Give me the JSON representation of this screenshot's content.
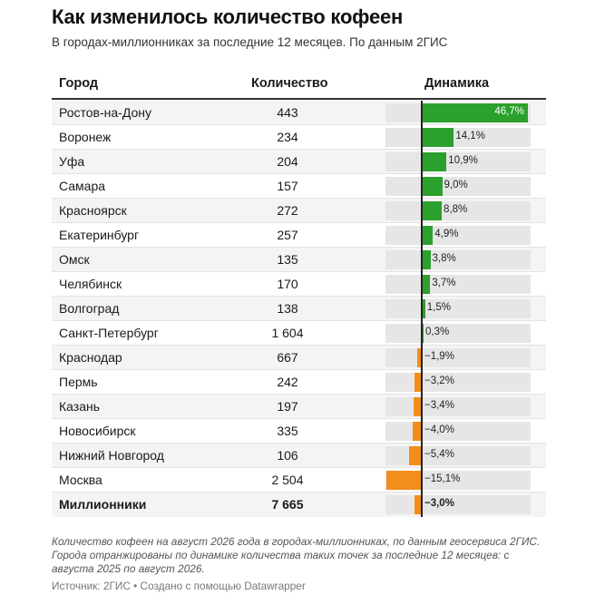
{
  "title": "Как изменилось количество кофеен",
  "subtitle": "В городах-миллионниках за последние 12 месяцев. По данным 2ГИС",
  "columns": {
    "city": "Город",
    "count": "Количество",
    "dynamics": "Динамика"
  },
  "colors": {
    "positive": "#2ca02c",
    "negative": "#f28e1c",
    "track": "#e6e6e6"
  },
  "chart_data": {
    "type": "table",
    "rows": [
      {
        "city": "Ростов-на-Дону",
        "count": "443",
        "change": 46.7,
        "label": "46,7%"
      },
      {
        "city": "Воронеж",
        "count": "234",
        "change": 14.1,
        "label": "14,1%"
      },
      {
        "city": "Уфа",
        "count": "204",
        "change": 10.9,
        "label": "10,9%"
      },
      {
        "city": "Самара",
        "count": "157",
        "change": 9.0,
        "label": "9,0%"
      },
      {
        "city": "Красноярск",
        "count": "272",
        "change": 8.8,
        "label": "8,8%"
      },
      {
        "city": "Екатеринбург",
        "count": "257",
        "change": 4.9,
        "label": "4,9%"
      },
      {
        "city": "Омск",
        "count": "135",
        "change": 3.8,
        "label": "3,8%"
      },
      {
        "city": "Челябинск",
        "count": "170",
        "change": 3.7,
        "label": "3,7%"
      },
      {
        "city": "Волгоград",
        "count": "138",
        "change": 1.5,
        "label": "1,5%"
      },
      {
        "city": "Санкт-Петербург",
        "count": "1 604",
        "change": 0.3,
        "label": "0,3%"
      },
      {
        "city": "Краснодар",
        "count": "667",
        "change": -1.9,
        "label": "−1,9%"
      },
      {
        "city": "Пермь",
        "count": "242",
        "change": -3.2,
        "label": "−3,2%"
      },
      {
        "city": "Казань",
        "count": "197",
        "change": -3.4,
        "label": "−3,4%"
      },
      {
        "city": "Новосибирск",
        "count": "335",
        "change": -4.0,
        "label": "−4,0%"
      },
      {
        "city": "Нижний Новгород",
        "count": "106",
        "change": -5.4,
        "label": "−5,4%"
      },
      {
        "city": "Москва",
        "count": "2 504",
        "change": -15.1,
        "label": "−15,1%"
      },
      {
        "city": "Миллионники",
        "count": "7 665",
        "change": -3.0,
        "label": "−3,0%",
        "total": true
      }
    ],
    "xlim": [
      -15.1,
      46.7
    ]
  },
  "notes": "Количество кофеен на август 2026 года в городах-миллионниках, по данным геосервиса 2ГИС. Города отранжированы по динамике количества таких точек за последние 12 месяцев: с августа 2025 по август 2026.",
  "source": "Источник: 2ГИС • Создано с помощью Datawrapper"
}
